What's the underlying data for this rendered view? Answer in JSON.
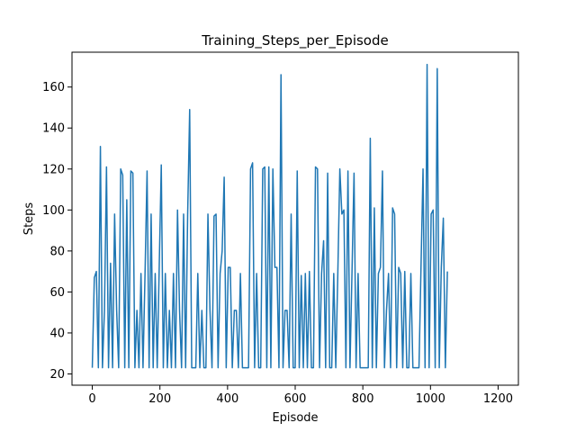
{
  "chart_data": {
    "type": "line",
    "title": "Training_Steps_per_Episode",
    "xlabel": "Episode",
    "ylabel": "Steps",
    "xlim": [
      -60,
      1260
    ],
    "ylim": [
      14.5,
      177
    ],
    "xticks": [
      0,
      200,
      400,
      600,
      800,
      1000,
      1200
    ],
    "yticks": [
      20,
      40,
      60,
      80,
      100,
      120,
      140,
      160
    ],
    "grid": false,
    "legend": "none",
    "colors": {
      "series": "#1f77b4",
      "axes": "#000000",
      "background": "#ffffff"
    },
    "series": [
      {
        "x_start": 0,
        "x_step": 6,
        "values": [
          23,
          67,
          70,
          23,
          131,
          23,
          51,
          121,
          23,
          74,
          23,
          98,
          51,
          23,
          120,
          117,
          23,
          105,
          23,
          119,
          118,
          23,
          51,
          23,
          69,
          23,
          69,
          119,
          23,
          98,
          23,
          69,
          23,
          73,
          122,
          23,
          69,
          23,
          51,
          23,
          69,
          23,
          100,
          51,
          23,
          98,
          23,
          98,
          149,
          23,
          23,
          23,
          69,
          23,
          51,
          23,
          23,
          98,
          51,
          23,
          97,
          98,
          23,
          69,
          80,
          116,
          23,
          72,
          72,
          23,
          51,
          51,
          23,
          69,
          23,
          23,
          23,
          23,
          120,
          123,
          23,
          69,
          23,
          23,
          120,
          121,
          23,
          121,
          23,
          120,
          72,
          72,
          23,
          166,
          23,
          51,
          51,
          23,
          98,
          23,
          23,
          119,
          23,
          68,
          23,
          69,
          23,
          70,
          23,
          23,
          121,
          120,
          23,
          69,
          85,
          23,
          118,
          23,
          23,
          69,
          23,
          69,
          120,
          98,
          100,
          23,
          119,
          23,
          70,
          118,
          23,
          69,
          23,
          23,
          23,
          23,
          23,
          135,
          23,
          101,
          23,
          69,
          72,
          119,
          23,
          51,
          69,
          23,
          101,
          98,
          23,
          72,
          69,
          23,
          70,
          23,
          23,
          69,
          23,
          23,
          23,
          23,
          72,
          120,
          23,
          171,
          23,
          98,
          100,
          23,
          169,
          23,
          72,
          96,
          23,
          70
        ]
      }
    ]
  }
}
